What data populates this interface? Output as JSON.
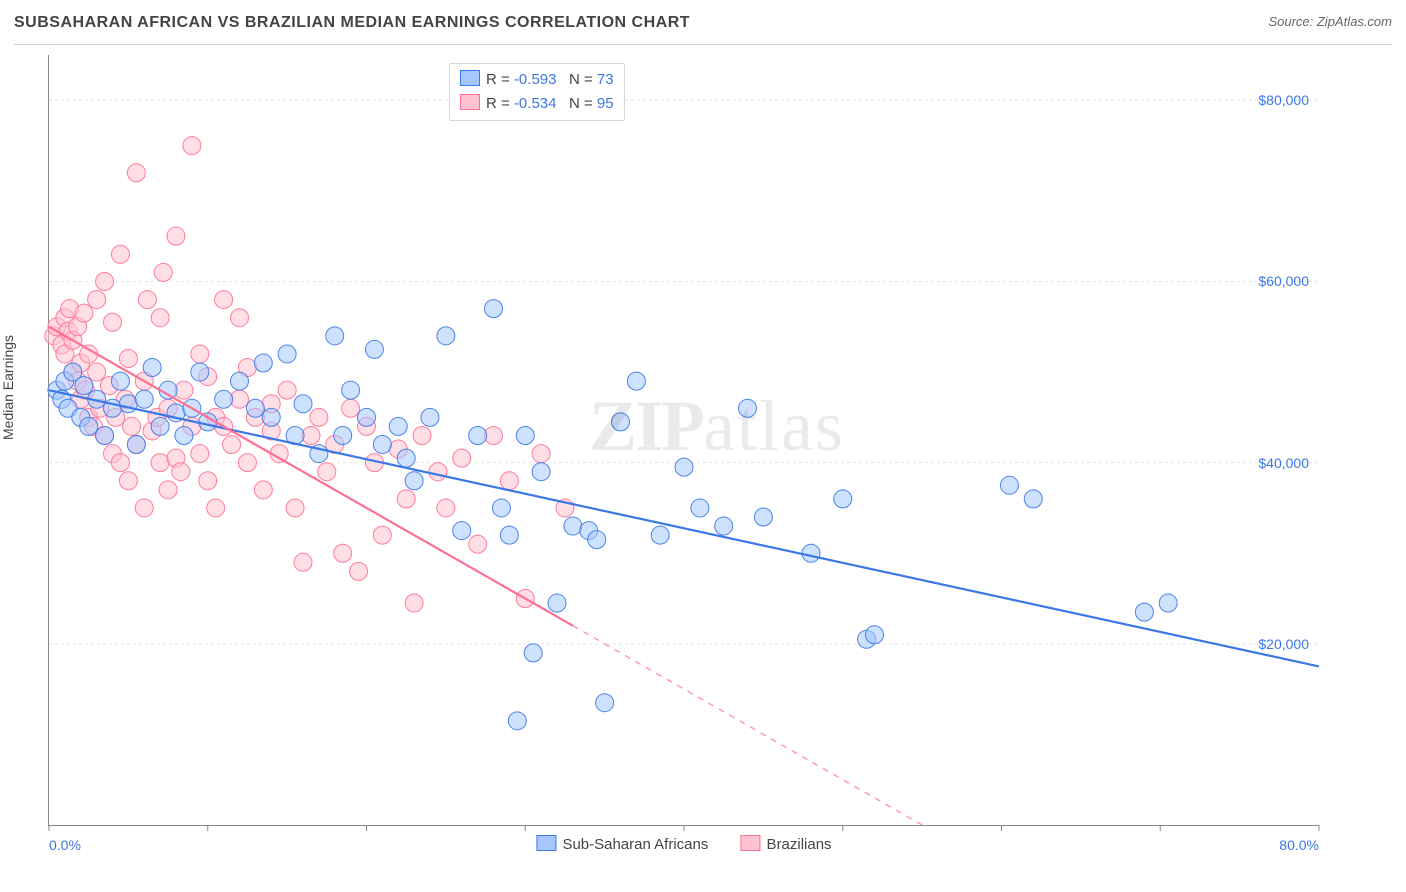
{
  "header": {
    "title": "SUBSAHARAN AFRICAN VS BRAZILIAN MEDIAN EARNINGS CORRELATION CHART",
    "source_prefix": "Source: ",
    "source_site": "ZipAtlas.com"
  },
  "ylabel": "Median Earnings",
  "watermark": {
    "part1": "ZIP",
    "part2": "atlas"
  },
  "chart": {
    "type": "scatter",
    "background_color": "#ffffff",
    "grid_color": "#e6e6e6",
    "axis_color": "#888888",
    "xlim": [
      0,
      80
    ],
    "ylim": [
      0,
      85000
    ],
    "x_ticks": [
      0,
      10,
      20,
      30,
      40,
      50,
      60,
      70,
      80
    ],
    "x_tick_labels_visible": {
      "0": "0.0%",
      "80": "80.0%"
    },
    "y_ticks": [
      20000,
      40000,
      60000,
      80000
    ],
    "y_tick_labels": {
      "20000": "$20,000",
      "40000": "$40,000",
      "60000": "$60,000",
      "80000": "$80,000"
    },
    "tick_label_color": "#3b78e7",
    "tick_label_fontsize": 14,
    "marker_radius": 9,
    "marker_opacity": 0.55,
    "marker_stroke_opacity": 0.9,
    "series": [
      {
        "name": "Sub-Saharan Africans",
        "color_fill": "#a6c8ff",
        "color_stroke": "#3b78e7",
        "r": "-0.593",
        "n": "73",
        "regression": {
          "x1": 0,
          "y1": 48000,
          "x2": 80,
          "y2": 17500,
          "solid_until_x": 80
        },
        "points": [
          [
            0.5,
            48000
          ],
          [
            0.8,
            47000
          ],
          [
            1.0,
            49000
          ],
          [
            1.2,
            46000
          ],
          [
            1.5,
            50000
          ],
          [
            2.0,
            45000
          ],
          [
            2.2,
            48500
          ],
          [
            2.5,
            44000
          ],
          [
            3.0,
            47000
          ],
          [
            3.5,
            43000
          ],
          [
            4.0,
            46000
          ],
          [
            4.5,
            49000
          ],
          [
            5.0,
            46500
          ],
          [
            5.5,
            42000
          ],
          [
            6.0,
            47000
          ],
          [
            6.5,
            50500
          ],
          [
            7.0,
            44000
          ],
          [
            7.5,
            48000
          ],
          [
            8.0,
            45500
          ],
          [
            8.5,
            43000
          ],
          [
            9.0,
            46000
          ],
          [
            9.5,
            50000
          ],
          [
            10.0,
            44500
          ],
          [
            11.0,
            47000
          ],
          [
            12.0,
            49000
          ],
          [
            13.0,
            46000
          ],
          [
            13.5,
            51000
          ],
          [
            14.0,
            45000
          ],
          [
            15.0,
            52000
          ],
          [
            15.5,
            43000
          ],
          [
            16.0,
            46500
          ],
          [
            17.0,
            41000
          ],
          [
            18.0,
            54000
          ],
          [
            18.5,
            43000
          ],
          [
            19.0,
            48000
          ],
          [
            20.0,
            45000
          ],
          [
            20.5,
            52500
          ],
          [
            21.0,
            42000
          ],
          [
            22.0,
            44000
          ],
          [
            22.5,
            40500
          ],
          [
            23.0,
            38000
          ],
          [
            24.0,
            45000
          ],
          [
            25.0,
            54000
          ],
          [
            26.0,
            32500
          ],
          [
            27.0,
            43000
          ],
          [
            28.0,
            57000
          ],
          [
            28.5,
            35000
          ],
          [
            29.0,
            32000
          ],
          [
            29.5,
            11500
          ],
          [
            30.0,
            43000
          ],
          [
            30.5,
            19000
          ],
          [
            31.0,
            39000
          ],
          [
            32.0,
            24500
          ],
          [
            33.0,
            33000
          ],
          [
            34.0,
            32500
          ],
          [
            34.5,
            31500
          ],
          [
            35.0,
            13500
          ],
          [
            36.0,
            44500
          ],
          [
            37.0,
            49000
          ],
          [
            38.5,
            32000
          ],
          [
            40.0,
            39500
          ],
          [
            41.0,
            35000
          ],
          [
            42.5,
            33000
          ],
          [
            44.0,
            46000
          ],
          [
            45.0,
            34000
          ],
          [
            48.0,
            30000
          ],
          [
            50.0,
            36000
          ],
          [
            51.5,
            20500
          ],
          [
            52.0,
            21000
          ],
          [
            60.5,
            37500
          ],
          [
            62.0,
            36000
          ],
          [
            69.0,
            23500
          ],
          [
            70.5,
            24500
          ]
        ]
      },
      {
        "name": "Brazilians",
        "color_fill": "#ffc2d1",
        "color_stroke": "#ff6f91",
        "r": "-0.534",
        "n": "95",
        "regression": {
          "x1": 0,
          "y1": 55000,
          "x2": 55,
          "y2": 0,
          "solid_until_x": 33
        },
        "points": [
          [
            0.3,
            54000
          ],
          [
            0.5,
            55000
          ],
          [
            0.8,
            53000
          ],
          [
            1.0,
            56000
          ],
          [
            1.0,
            52000
          ],
          [
            1.2,
            54500
          ],
          [
            1.3,
            57000
          ],
          [
            1.5,
            50000
          ],
          [
            1.5,
            53500
          ],
          [
            1.8,
            49000
          ],
          [
            1.8,
            55000
          ],
          [
            2.0,
            51000
          ],
          [
            2.0,
            47000
          ],
          [
            2.2,
            56500
          ],
          [
            2.3,
            48000
          ],
          [
            2.5,
            52000
          ],
          [
            2.5,
            45000
          ],
          [
            2.8,
            44000
          ],
          [
            3.0,
            50000
          ],
          [
            3.0,
            58000
          ],
          [
            3.2,
            46000
          ],
          [
            3.5,
            43000
          ],
          [
            3.5,
            60000
          ],
          [
            3.8,
            48500
          ],
          [
            4.0,
            41000
          ],
          [
            4.0,
            55500
          ],
          [
            4.2,
            45000
          ],
          [
            4.5,
            40000
          ],
          [
            4.5,
            63000
          ],
          [
            4.8,
            47000
          ],
          [
            5.0,
            38000
          ],
          [
            5.0,
            51500
          ],
          [
            5.2,
            44000
          ],
          [
            5.5,
            72000
          ],
          [
            5.5,
            42000
          ],
          [
            6.0,
            35000
          ],
          [
            6.0,
            49000
          ],
          [
            6.2,
            58000
          ],
          [
            6.5,
            43500
          ],
          [
            6.8,
            45000
          ],
          [
            7.0,
            56000
          ],
          [
            7.0,
            40000
          ],
          [
            7.2,
            61000
          ],
          [
            7.5,
            37000
          ],
          [
            7.5,
            46000
          ],
          [
            8.0,
            65000
          ],
          [
            8.0,
            40500
          ],
          [
            8.3,
            39000
          ],
          [
            8.5,
            48000
          ],
          [
            9.0,
            75000
          ],
          [
            9.0,
            44000
          ],
          [
            9.5,
            41000
          ],
          [
            9.5,
            52000
          ],
          [
            10.0,
            38000
          ],
          [
            10.0,
            49500
          ],
          [
            10.5,
            45000
          ],
          [
            10.5,
            35000
          ],
          [
            11.0,
            44000
          ],
          [
            11.0,
            58000
          ],
          [
            11.5,
            42000
          ],
          [
            12.0,
            47000
          ],
          [
            12.0,
            56000
          ],
          [
            12.5,
            40000
          ],
          [
            12.5,
            50500
          ],
          [
            13.0,
            45000
          ],
          [
            13.5,
            37000
          ],
          [
            14.0,
            43500
          ],
          [
            14.0,
            46500
          ],
          [
            14.5,
            41000
          ],
          [
            15.0,
            48000
          ],
          [
            15.5,
            35000
          ],
          [
            16.0,
            29000
          ],
          [
            16.5,
            43000
          ],
          [
            17.0,
            45000
          ],
          [
            17.5,
            39000
          ],
          [
            18.0,
            42000
          ],
          [
            18.5,
            30000
          ],
          [
            19.0,
            46000
          ],
          [
            19.5,
            28000
          ],
          [
            20.0,
            44000
          ],
          [
            20.5,
            40000
          ],
          [
            21.0,
            32000
          ],
          [
            22.0,
            41500
          ],
          [
            22.5,
            36000
          ],
          [
            23.0,
            24500
          ],
          [
            23.5,
            43000
          ],
          [
            24.5,
            39000
          ],
          [
            25.0,
            35000
          ],
          [
            26.0,
            40500
          ],
          [
            27.0,
            31000
          ],
          [
            28.0,
            43000
          ],
          [
            29.0,
            38000
          ],
          [
            30.0,
            25000
          ],
          [
            31.0,
            41000
          ],
          [
            32.5,
            35000
          ]
        ]
      }
    ],
    "legend_top": {
      "r_label": "R =",
      "n_label": "N =",
      "text_color": "#444",
      "value_color": "#3b78e7"
    },
    "legend_bottom_labels": [
      "Sub-Saharan Africans",
      "Brazilians"
    ]
  }
}
